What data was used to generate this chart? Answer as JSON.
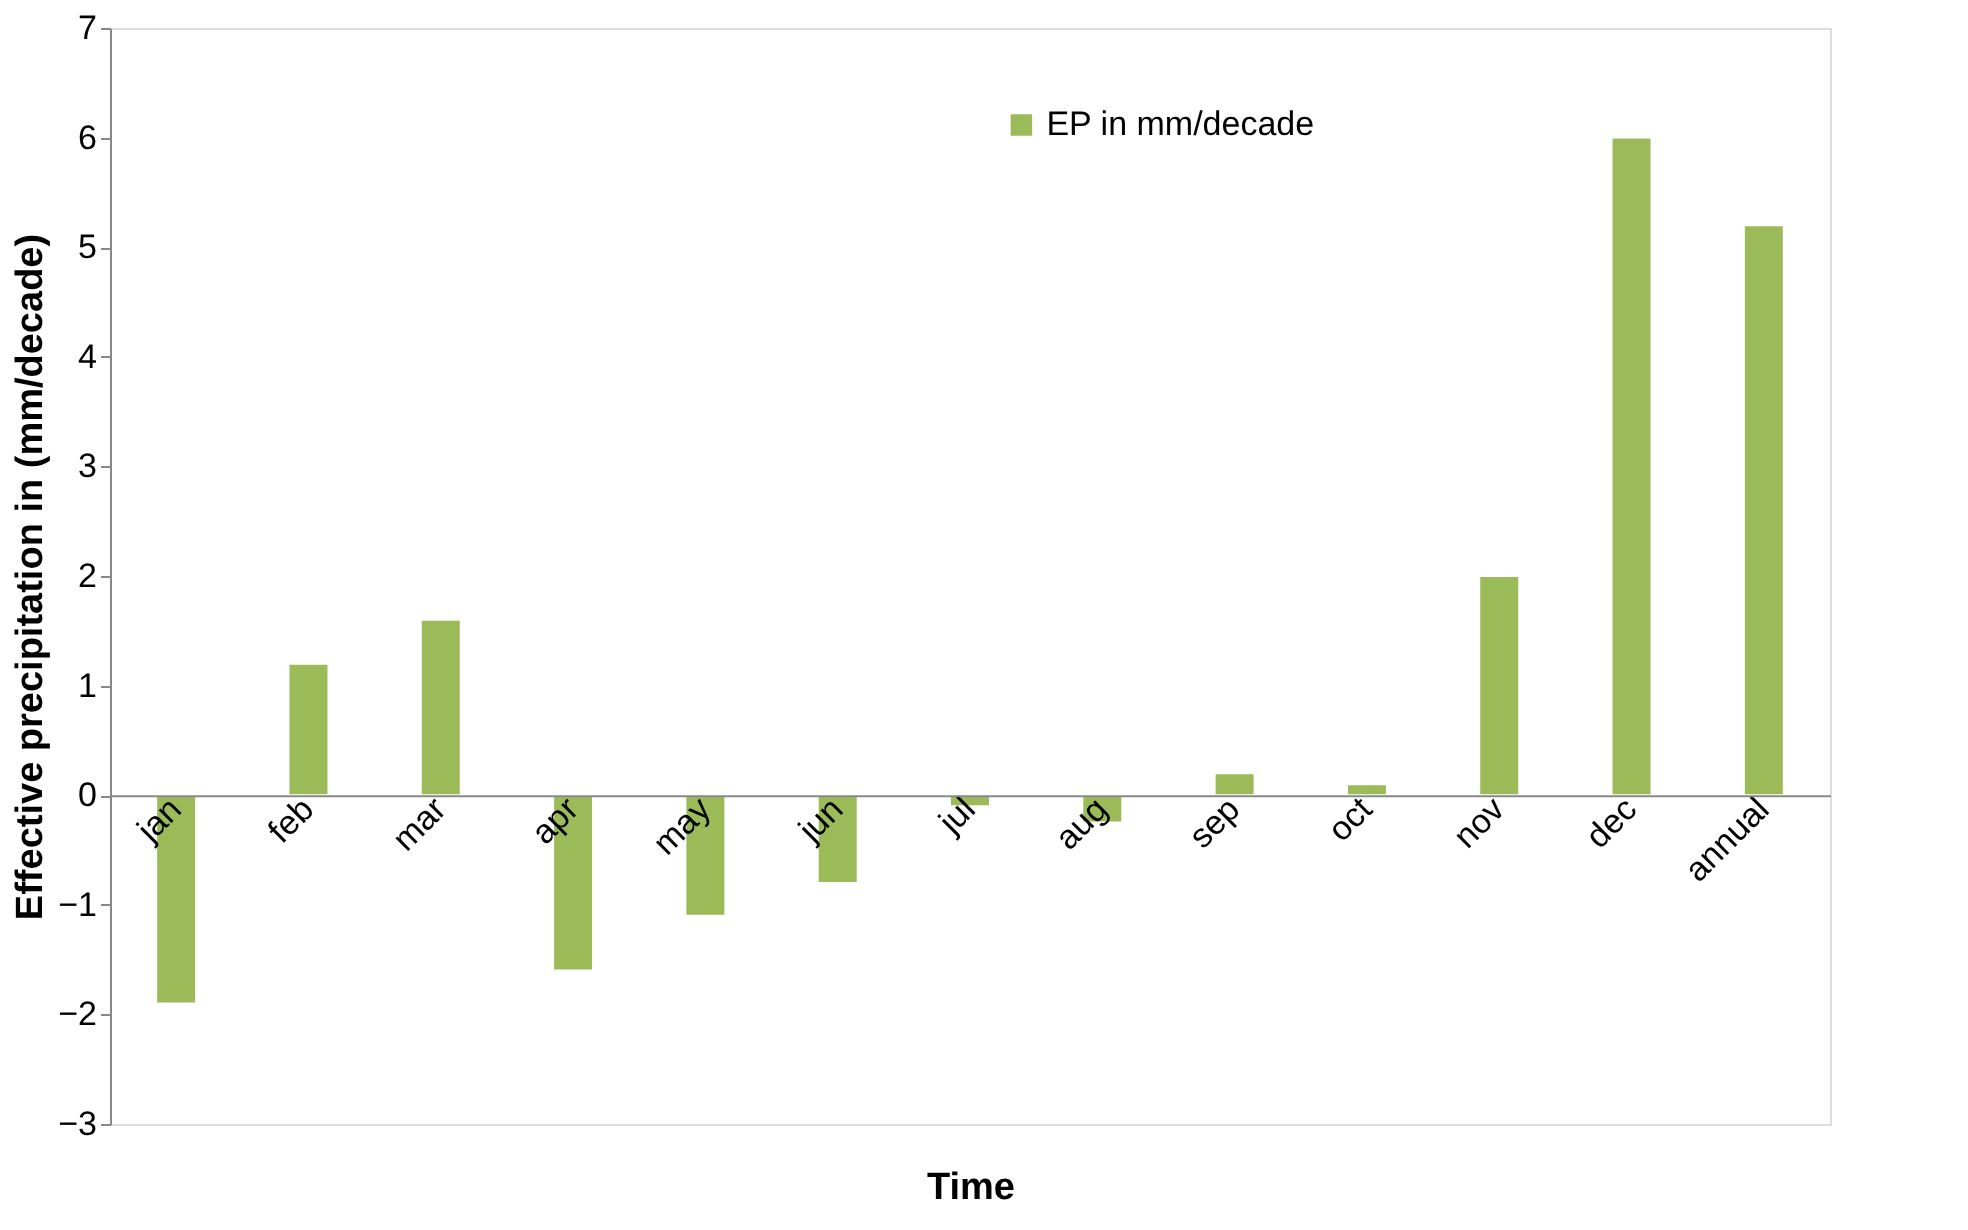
{
  "chart_data": {
    "type": "bar",
    "xlabel": "Time",
    "ylabel": "Effective precipitation in (mm/decade)",
    "categories": [
      "jan",
      "feb",
      "mar",
      "apr",
      "may",
      "jun",
      "jul",
      "aug",
      "sep",
      "oct",
      "nov",
      "dec",
      "annual"
    ],
    "series": [
      {
        "name": "EP in mm/decade",
        "color": "#9bbb59",
        "values": [
          -1.9,
          1.2,
          1.6,
          -1.6,
          -1.1,
          -0.8,
          -0.1,
          -0.25,
          0.2,
          0.1,
          2.0,
          6.0,
          5.2
        ]
      }
    ],
    "ylim": [
      -3,
      7
    ],
    "yticks": [
      -3,
      -2,
      -1,
      0,
      1,
      2,
      3,
      4,
      5,
      6,
      7
    ],
    "grid": false,
    "legend": "top right"
  }
}
